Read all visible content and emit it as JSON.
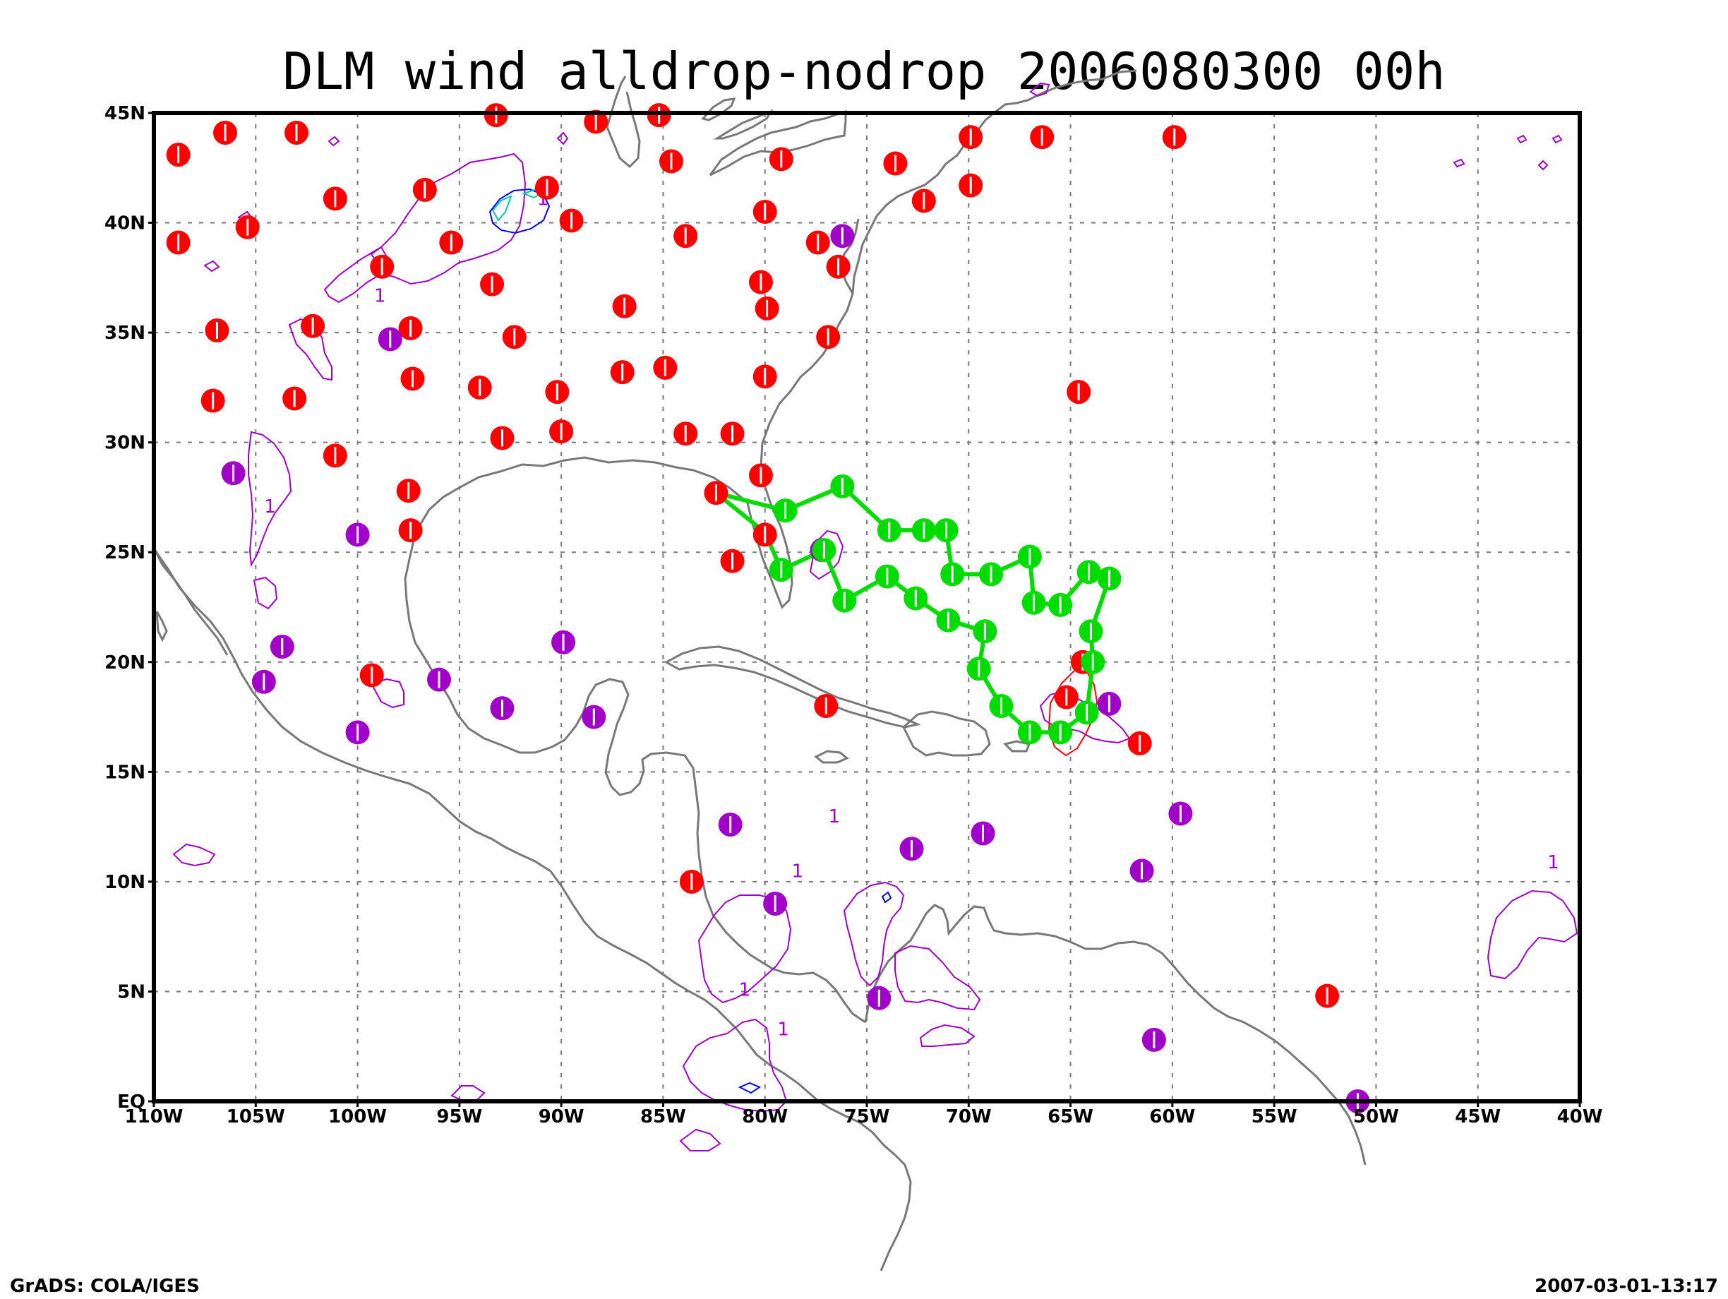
{
  "title": "DLM wind alldrop-nodrop 2006080300 00h",
  "footer": {
    "left": "GrADS: COLA/IGES",
    "right": "2007-03-01-13:17"
  },
  "colors": {
    "conventional_obs": "#ff0000",
    "other_obs": "#a000c8",
    "dropsonde": "#00dc00",
    "coastline": "#787878",
    "grid": "#787878",
    "contour": "#a000c8",
    "contour_inner": "#0000ff",
    "contour_core": "#00c8a0"
  },
  "map": {
    "lon_range": [
      -110,
      -40
    ],
    "lat_range": [
      0,
      45
    ],
    "grid": "dotted"
  },
  "x_ticks": [
    {
      "lon": -110,
      "label": "110W"
    },
    {
      "lon": -105,
      "label": "105W"
    },
    {
      "lon": -100,
      "label": "100W"
    },
    {
      "lon": -95,
      "label": "95W"
    },
    {
      "lon": -90,
      "label": "90W"
    },
    {
      "lon": -85,
      "label": "85W"
    },
    {
      "lon": -80,
      "label": "80W"
    },
    {
      "lon": -75,
      "label": "75W"
    },
    {
      "lon": -70,
      "label": "70W"
    },
    {
      "lon": -65,
      "label": "65W"
    },
    {
      "lon": -60,
      "label": "60W"
    },
    {
      "lon": -55,
      "label": "55W"
    },
    {
      "lon": -50,
      "label": "50W"
    },
    {
      "lon": -45,
      "label": "45W"
    },
    {
      "lon": -40,
      "label": "40W"
    }
  ],
  "y_ticks": [
    {
      "lat": 0,
      "label": "EQ"
    },
    {
      "lat": 5,
      "label": "5N"
    },
    {
      "lat": 10,
      "label": "10N"
    },
    {
      "lat": 15,
      "label": "15N"
    },
    {
      "lat": 20,
      "label": "20N"
    },
    {
      "lat": 25,
      "label": "25N"
    },
    {
      "lat": 30,
      "label": "30N"
    },
    {
      "lat": 35,
      "label": "35N"
    },
    {
      "lat": 40,
      "label": "40N"
    },
    {
      "lat": 45,
      "label": "45N"
    }
  ],
  "contour_labels": [
    {
      "lon": -104.3,
      "lat": 26.8,
      "text": "1"
    },
    {
      "lon": -98.9,
      "lat": 36.4,
      "text": "1"
    },
    {
      "lon": -90.9,
      "lat": 40.8,
      "text": "1"
    },
    {
      "lon": -76.6,
      "lat": 12.7,
      "text": "1"
    },
    {
      "lon": -78.4,
      "lat": 10.2,
      "text": "1"
    },
    {
      "lon": -81.0,
      "lat": 4.8,
      "text": "1"
    },
    {
      "lon": -79.1,
      "lat": 3.0,
      "text": "1"
    },
    {
      "lon": -41.3,
      "lat": 10.6,
      "text": "1"
    }
  ],
  "red_sites": [
    [
      -108.8,
      43.1
    ],
    [
      -106.5,
      44.1
    ],
    [
      -103.0,
      44.1
    ],
    [
      -101.1,
      41.1
    ],
    [
      -98.8,
      38.0
    ],
    [
      -96.7,
      41.5
    ],
    [
      -95.4,
      39.1
    ],
    [
      -93.2,
      44.9
    ],
    [
      -90.7,
      41.6
    ],
    [
      -89.5,
      40.1
    ],
    [
      -88.3,
      44.6
    ],
    [
      -85.2,
      44.9
    ],
    [
      -84.6,
      42.8
    ],
    [
      -79.2,
      42.9
    ],
    [
      -80.0,
      40.5
    ],
    [
      -77.4,
      39.1
    ],
    [
      -76.4,
      38.0
    ],
    [
      -73.6,
      42.7
    ],
    [
      -72.2,
      41.0
    ],
    [
      -69.9,
      43.9
    ],
    [
      -69.9,
      41.7
    ],
    [
      -66.4,
      43.9
    ],
    [
      -59.9,
      43.9
    ],
    [
      -108.8,
      39.1
    ],
    [
      -105.4,
      39.8
    ],
    [
      -106.9,
      35.1
    ],
    [
      -102.2,
      35.3
    ],
    [
      -97.4,
      35.2
    ],
    [
      -93.4,
      37.2
    ],
    [
      -92.3,
      34.8
    ],
    [
      -86.9,
      36.2
    ],
    [
      -83.9,
      39.4
    ],
    [
      -80.2,
      37.3
    ],
    [
      -79.9,
      36.1
    ],
    [
      -76.9,
      34.8
    ],
    [
      -107.1,
      31.9
    ],
    [
      -103.1,
      32.0
    ],
    [
      -97.3,
      32.9
    ],
    [
      -94.0,
      32.5
    ],
    [
      -90.2,
      32.3
    ],
    [
      -87.0,
      33.2
    ],
    [
      -84.9,
      33.4
    ],
    [
      -80.0,
      33.0
    ],
    [
      -101.1,
      29.4
    ],
    [
      -97.5,
      27.8
    ],
    [
      -97.4,
      26.0
    ],
    [
      -92.9,
      30.2
    ],
    [
      -90.0,
      30.5
    ],
    [
      -83.9,
      30.4
    ],
    [
      -81.6,
      30.4
    ],
    [
      -80.2,
      28.5
    ],
    [
      -82.4,
      27.7
    ],
    [
      -80.0,
      25.8
    ],
    [
      -81.6,
      24.6
    ],
    [
      -64.6,
      32.3
    ],
    [
      -99.3,
      19.4
    ],
    [
      -77.0,
      18.0
    ],
    [
      -65.2,
      18.4
    ],
    [
      -64.4,
      20.0
    ],
    [
      -61.6,
      16.3
    ],
    [
      -83.6,
      10.0
    ],
    [
      -52.4,
      4.8
    ]
  ],
  "purple_sites": [
    [
      -76.2,
      39.4
    ],
    [
      -98.4,
      34.7
    ],
    [
      -106.1,
      28.6
    ],
    [
      -100.0,
      25.8
    ],
    [
      -77.2,
      25.1
    ],
    [
      -103.7,
      20.7
    ],
    [
      -104.6,
      19.1
    ],
    [
      -96.0,
      19.2
    ],
    [
      -92.9,
      17.9
    ],
    [
      -89.9,
      20.9
    ],
    [
      -88.4,
      17.5
    ],
    [
      -100.0,
      16.8
    ],
    [
      -81.7,
      12.6
    ],
    [
      -79.5,
      9.0
    ],
    [
      -74.4,
      4.7
    ],
    [
      -72.8,
      11.5
    ],
    [
      -69.3,
      12.2
    ],
    [
      -63.1,
      18.1
    ],
    [
      -59.6,
      13.1
    ],
    [
      -61.5,
      10.5
    ],
    [
      -60.9,
      2.8
    ],
    [
      -50.9,
      0.0
    ]
  ],
  "drop_track_path": [
    [
      -82.4,
      27.7
    ],
    [
      -79.0,
      26.9
    ],
    [
      -76.2,
      28.0
    ],
    [
      -73.9,
      26.0
    ],
    [
      -71.1,
      26.0
    ],
    [
      -70.8,
      24.0
    ],
    [
      -68.9,
      24.0
    ],
    [
      -67.0,
      24.8
    ],
    [
      -66.8,
      22.7
    ],
    [
      -65.5,
      22.6
    ],
    [
      -64.1,
      24.1
    ],
    [
      -63.1,
      23.8
    ],
    [
      -64.0,
      21.4
    ],
    [
      -63.9,
      20.0
    ],
    [
      -64.2,
      17.7
    ],
    [
      -65.5,
      16.8
    ],
    [
      -67.0,
      16.8
    ],
    [
      -68.4,
      18.0
    ],
    [
      -69.5,
      19.7
    ],
    [
      -69.2,
      21.4
    ],
    [
      -71.0,
      21.9
    ],
    [
      -72.6,
      22.9
    ],
    [
      -74.0,
      23.9
    ],
    [
      -76.1,
      22.8
    ],
    [
      -77.1,
      25.1
    ],
    [
      -79.2,
      24.2
    ],
    [
      -80.0,
      25.9
    ],
    [
      -82.4,
      27.7
    ]
  ],
  "drop_extra_link": [
    [
      -79.0,
      26.9
    ],
    [
      -76.2,
      28.0
    ]
  ],
  "drop_sites": [
    [
      -79.0,
      26.9
    ],
    [
      -76.2,
      28.0
    ],
    [
      -73.9,
      26.0
    ],
    [
      -72.2,
      26.0
    ],
    [
      -71.1,
      26.0
    ],
    [
      -70.8,
      24.0
    ],
    [
      -68.9,
      24.0
    ],
    [
      -67.0,
      24.8
    ],
    [
      -66.8,
      22.7
    ],
    [
      -65.5,
      22.6
    ],
    [
      -64.1,
      24.1
    ],
    [
      -63.1,
      23.8
    ],
    [
      -64.0,
      21.4
    ],
    [
      -63.9,
      20.0
    ],
    [
      -64.2,
      17.7
    ],
    [
      -65.5,
      16.8
    ],
    [
      -67.0,
      16.8
    ],
    [
      -68.4,
      18.0
    ],
    [
      -69.5,
      19.7
    ],
    [
      -69.2,
      21.4
    ],
    [
      -71.0,
      21.9
    ],
    [
      -72.6,
      22.9
    ],
    [
      -74.0,
      23.9
    ],
    [
      -76.1,
      22.8
    ],
    [
      -79.2,
      24.2
    ],
    [
      -77.1,
      25.1
    ]
  ]
}
